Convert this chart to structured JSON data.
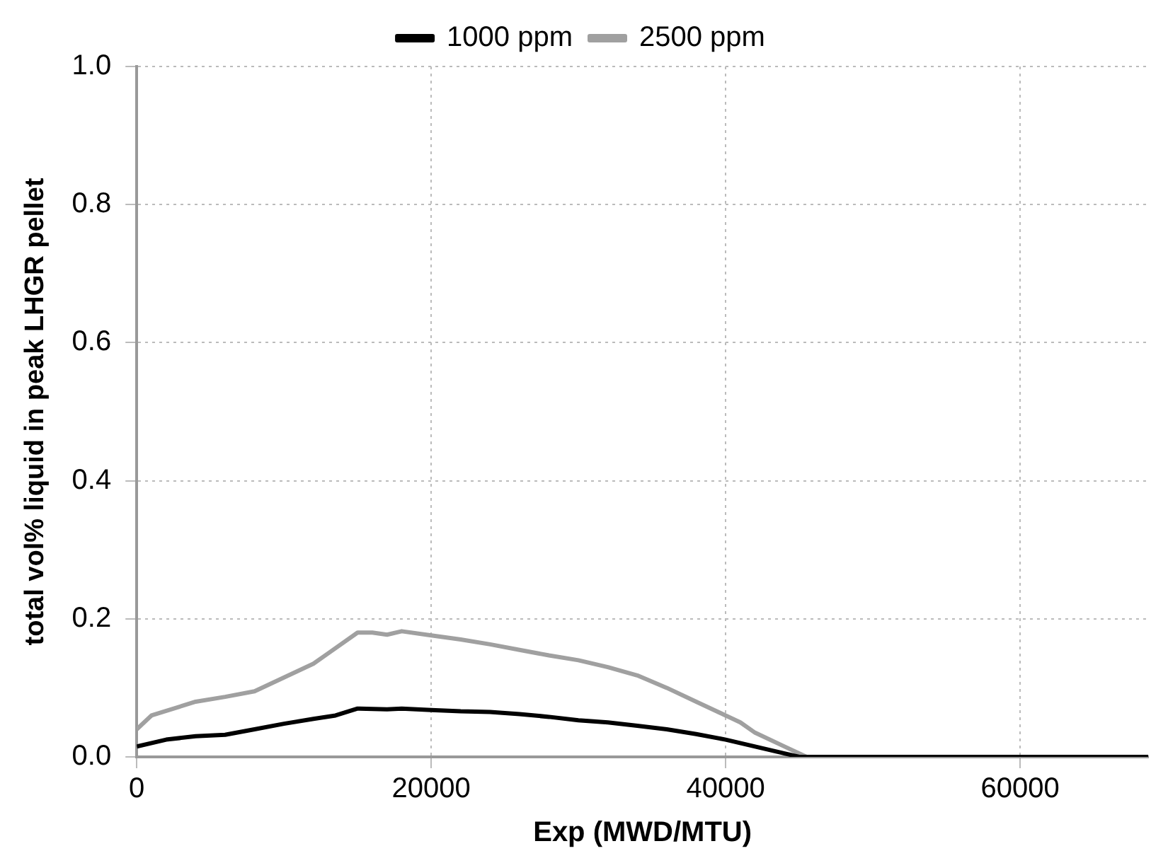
{
  "chart_data": {
    "type": "line",
    "xlabel": "Exp (MWD/MTU)",
    "ylabel": "total vol% liquid in peak LHGR pellet",
    "xlim": [
      0,
      68700
    ],
    "xticks": [
      0,
      20000,
      40000,
      60000
    ],
    "ylim": [
      0,
      1
    ],
    "yticks": [
      {
        "value": 0,
        "label": "0.0"
      },
      {
        "value": 0.2,
        "label": "0.2"
      },
      {
        "value": 0.4,
        "label": "0.4"
      },
      {
        "value": 0.6,
        "label": "0.6"
      },
      {
        "value": 0.8,
        "label": "0.8"
      },
      {
        "value": 1,
        "label": "1.0"
      }
    ],
    "grid": true,
    "legend": "top",
    "marker": "none",
    "series": [
      {
        "name": "1000 ppm",
        "color": "#000000",
        "x": [
          0,
          2000,
          4000,
          6000,
          8000,
          10000,
          12000,
          13500,
          15000,
          17000,
          18000,
          20000,
          22000,
          24000,
          26000,
          28000,
          30000,
          32000,
          34000,
          36000,
          38000,
          40000,
          42000,
          44000,
          45000,
          68700
        ],
        "values": [
          0.015,
          0.025,
          0.03,
          0.032,
          0.04,
          0.048,
          0.055,
          0.06,
          0.07,
          0.069,
          0.07,
          0.068,
          0.066,
          0.065,
          0.062,
          0.058,
          0.053,
          0.05,
          0.045,
          0.04,
          0.033,
          0.025,
          0.015,
          0.005,
          0,
          0
        ]
      },
      {
        "name": "2500 ppm",
        "color": "#a0a0a0",
        "x": [
          0,
          1000,
          4000,
          6000,
          8000,
          10000,
          12000,
          13000,
          15000,
          16000,
          17000,
          18000,
          20000,
          22000,
          24000,
          26000,
          28000,
          30000,
          32000,
          34000,
          36000,
          38000,
          40000,
          41000,
          42000,
          44000,
          45500,
          68700
        ],
        "values": [
          0.04,
          0.06,
          0.08,
          0.087,
          0.095,
          0.115,
          0.135,
          0.15,
          0.18,
          0.18,
          0.177,
          0.182,
          0.176,
          0.17,
          0.163,
          0.155,
          0.147,
          0.14,
          0.13,
          0.118,
          0.1,
          0.08,
          0.06,
          0.05,
          0.035,
          0.015,
          0,
          0
        ]
      }
    ]
  }
}
